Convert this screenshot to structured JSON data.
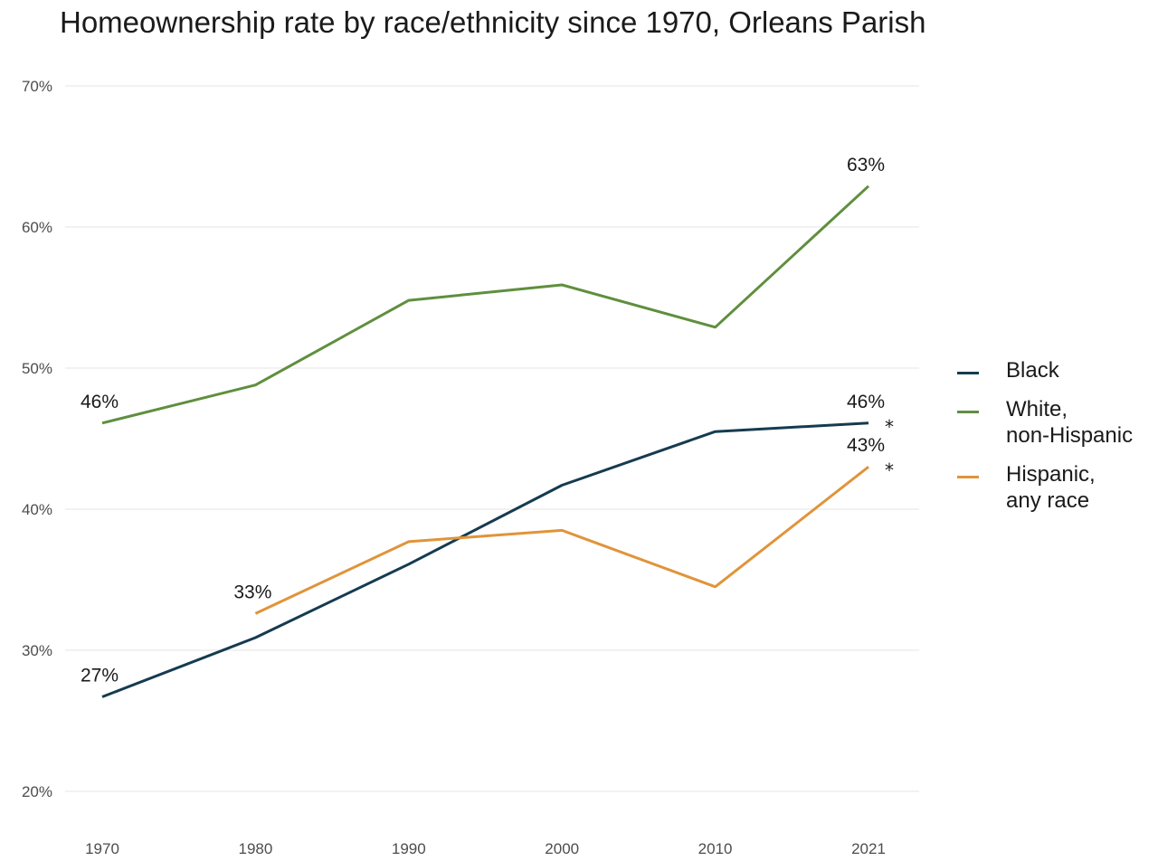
{
  "chart_data": {
    "type": "line",
    "title": "Homeownership rate by race/ethnicity since 1970, Orleans Parish",
    "xlabel": "",
    "ylabel": "",
    "x": [
      1970,
      1980,
      1990,
      2000,
      2010,
      2021
    ],
    "x_tick_labels": [
      "1970",
      "1980",
      "1990",
      "2000",
      "2010",
      "2021"
    ],
    "ylim": [
      20,
      70
    ],
    "y_ticks": [
      20,
      30,
      40,
      50,
      60,
      70
    ],
    "y_tick_labels": [
      "20%",
      "30%",
      "40%",
      "50%",
      "60%",
      "70%"
    ],
    "grid": "horizontal",
    "legend_position": "right",
    "series": [
      {
        "name": "Black",
        "color": "#153b50",
        "values": [
          26.7,
          30.9,
          36.1,
          41.7,
          45.5,
          46.1
        ],
        "labels": [
          {
            "index": 0,
            "text": "27%"
          },
          {
            "index": 5,
            "text": "46%"
          }
        ],
        "end_marker": "*"
      },
      {
        "name": "White,\nnon-Hispanic",
        "color": "#5f8f3e",
        "values": [
          46.1,
          48.8,
          54.8,
          55.9,
          52.9,
          62.9
        ],
        "labels": [
          {
            "index": 0,
            "text": "46%"
          },
          {
            "index": 5,
            "text": "63%"
          }
        ],
        "end_marker": ""
      },
      {
        "name": "Hispanic,\nany race",
        "color": "#e0943a",
        "values": [
          null,
          32.6,
          37.7,
          38.5,
          34.5,
          43.0
        ],
        "labels": [
          {
            "index": 1,
            "text": "33%"
          },
          {
            "index": 5,
            "text": "43%"
          }
        ],
        "end_marker": "*"
      }
    ]
  }
}
